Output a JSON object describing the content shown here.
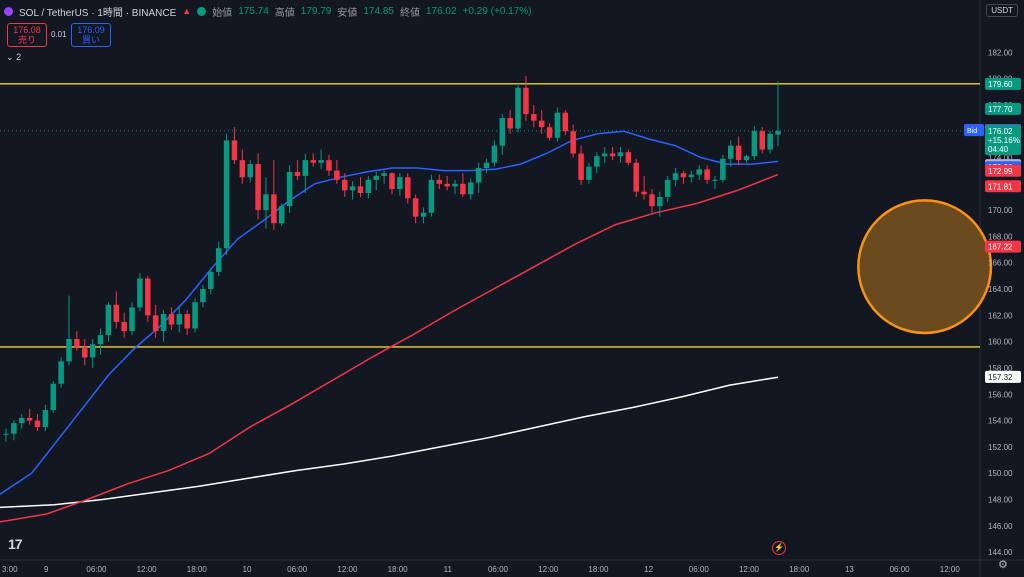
{
  "header": {
    "symbol": "SOL / TetherUS · 1時間 · BINANCE",
    "open_label": "始値",
    "open": "175.74",
    "high_label": "高値",
    "high": "179.79",
    "low_label": "安値",
    "low": "174.85",
    "close_label": "終値",
    "close": "176.02",
    "change": "+0.29 (+0.17%)"
  },
  "quote": {
    "sell_price": "176.08",
    "sell_label": "売り",
    "spread": "0.01",
    "buy_price": "176.09",
    "buy_label": "買い"
  },
  "collapse_count": "2",
  "currency": "USDT",
  "chart_data": {
    "type": "candlestick",
    "title": "",
    "xlabel": "",
    "ylabel": "",
    "ylim": [
      143.4,
      184.3
    ],
    "x_ticks": [
      "3:00",
      "9",
      "06:00",
      "12:00",
      "18:00",
      "10",
      "06:00",
      "12:00",
      "18:00",
      "11",
      "06:00",
      "12:00",
      "18:00",
      "12",
      "06:00",
      "12:00",
      "18:00",
      "13",
      "06:00",
      "12:00"
    ],
    "y_ticks": [
      182,
      180,
      178,
      176,
      174,
      172,
      170,
      168,
      166,
      164,
      162,
      160,
      158,
      156,
      154,
      152,
      150,
      148,
      146,
      144
    ],
    "candles_ohlc": [
      [
        153.0,
        153.4,
        152.4,
        153.0
      ],
      [
        153.0,
        154.0,
        152.5,
        153.8
      ],
      [
        153.8,
        154.5,
        153.4,
        154.2
      ],
      [
        154.2,
        154.9,
        153.7,
        154.0
      ],
      [
        154.0,
        154.5,
        153.2,
        153.5
      ],
      [
        153.5,
        155.2,
        153.2,
        154.8
      ],
      [
        154.8,
        157.0,
        154.6,
        156.8
      ],
      [
        156.8,
        158.8,
        156.5,
        158.5
      ],
      [
        158.5,
        163.5,
        158.2,
        160.2
      ],
      [
        160.2,
        160.8,
        159.3,
        159.6
      ],
      [
        159.6,
        160.2,
        158.2,
        158.8
      ],
      [
        158.8,
        160.2,
        158.0,
        159.8
      ],
      [
        159.8,
        161.0,
        159.0,
        160.5
      ],
      [
        160.5,
        163.0,
        160.0,
        162.8
      ],
      [
        162.8,
        163.8,
        161.0,
        161.5
      ],
      [
        161.5,
        162.2,
        160.3,
        160.8
      ],
      [
        160.8,
        163.0,
        160.5,
        162.6
      ],
      [
        162.6,
        165.2,
        162.3,
        164.8
      ],
      [
        164.8,
        165.0,
        161.5,
        162.0
      ],
      [
        162.0,
        162.8,
        160.3,
        160.8
      ],
      [
        160.8,
        162.4,
        160.0,
        162.1
      ],
      [
        162.1,
        162.6,
        160.9,
        161.3
      ],
      [
        161.3,
        162.6,
        160.7,
        162.1
      ],
      [
        162.1,
        162.4,
        160.5,
        161.0
      ],
      [
        161.0,
        163.3,
        160.7,
        163.0
      ],
      [
        163.0,
        164.3,
        162.6,
        164.0
      ],
      [
        164.0,
        165.6,
        163.6,
        165.3
      ],
      [
        165.3,
        167.6,
        165.0,
        167.1
      ],
      [
        167.1,
        175.8,
        166.6,
        175.3
      ],
      [
        175.3,
        176.3,
        173.5,
        173.8
      ],
      [
        173.8,
        174.6,
        172.0,
        172.5
      ],
      [
        172.5,
        173.8,
        172.1,
        173.5
      ],
      [
        173.5,
        174.3,
        169.3,
        170.0
      ],
      [
        170.0,
        172.5,
        168.6,
        171.2
      ],
      [
        171.2,
        173.8,
        168.5,
        169.0
      ],
      [
        169.0,
        170.5,
        168.8,
        170.3
      ],
      [
        170.3,
        173.4,
        169.8,
        172.9
      ],
      [
        172.9,
        173.8,
        172.3,
        172.6
      ],
      [
        172.6,
        174.3,
        171.3,
        173.8
      ],
      [
        173.8,
        174.3,
        173.3,
        173.6
      ],
      [
        173.6,
        174.6,
        173.1,
        173.8
      ],
      [
        173.8,
        174.2,
        172.6,
        173.0
      ],
      [
        173.0,
        173.8,
        172.0,
        172.3
      ],
      [
        172.3,
        172.8,
        171.0,
        171.5
      ],
      [
        171.5,
        172.2,
        170.8,
        171.8
      ],
      [
        171.8,
        172.5,
        171.0,
        171.3
      ],
      [
        171.3,
        172.6,
        170.9,
        172.3
      ],
      [
        172.3,
        172.9,
        171.5,
        172.6
      ],
      [
        172.6,
        173.0,
        172.0,
        172.8
      ],
      [
        172.8,
        172.9,
        171.2,
        171.6
      ],
      [
        171.6,
        172.8,
        171.1,
        172.5
      ],
      [
        172.5,
        172.8,
        170.5,
        170.9
      ],
      [
        170.9,
        171.2,
        169.0,
        169.5
      ],
      [
        169.5,
        170.2,
        169.0,
        169.8
      ],
      [
        169.8,
        172.7,
        169.5,
        172.3
      ],
      [
        172.3,
        172.7,
        171.6,
        172.0
      ],
      [
        172.0,
        172.6,
        171.5,
        171.8
      ],
      [
        171.8,
        172.3,
        171.2,
        172.0
      ],
      [
        172.0,
        172.8,
        171.0,
        171.2
      ],
      [
        171.2,
        172.4,
        170.8,
        172.1
      ],
      [
        172.1,
        173.6,
        171.3,
        173.2
      ],
      [
        173.2,
        173.9,
        172.8,
        173.6
      ],
      [
        173.6,
        175.3,
        173.3,
        174.9
      ],
      [
        174.9,
        177.3,
        174.2,
        177.0
      ],
      [
        177.0,
        177.6,
        175.8,
        176.2
      ],
      [
        176.2,
        179.6,
        175.9,
        179.3
      ],
      [
        179.3,
        180.2,
        176.8,
        177.3
      ],
      [
        177.3,
        178.0,
        176.3,
        176.8
      ],
      [
        176.8,
        177.6,
        175.8,
        176.3
      ],
      [
        176.3,
        176.6,
        175.3,
        175.5
      ],
      [
        175.5,
        177.8,
        175.2,
        177.4
      ],
      [
        177.4,
        177.6,
        175.7,
        176.0
      ],
      [
        176.0,
        176.5,
        174.0,
        174.3
      ],
      [
        174.3,
        174.9,
        171.9,
        172.3
      ],
      [
        172.3,
        173.6,
        172.0,
        173.3
      ],
      [
        173.3,
        174.4,
        172.8,
        174.1
      ],
      [
        174.1,
        174.8,
        173.6,
        174.3
      ],
      [
        174.3,
        174.8,
        173.8,
        174.1
      ],
      [
        174.1,
        174.8,
        173.6,
        174.4
      ],
      [
        174.4,
        174.6,
        173.4,
        173.6
      ],
      [
        173.6,
        173.9,
        171.0,
        171.4
      ],
      [
        171.4,
        172.6,
        170.8,
        171.2
      ],
      [
        171.2,
        171.6,
        169.8,
        170.3
      ],
      [
        170.3,
        171.4,
        169.5,
        171.0
      ],
      [
        171.0,
        172.6,
        170.6,
        172.3
      ],
      [
        172.3,
        173.2,
        171.8,
        172.8
      ],
      [
        172.8,
        173.0,
        172.0,
        172.5
      ],
      [
        172.5,
        173.0,
        172.1,
        172.7
      ],
      [
        172.7,
        173.4,
        172.3,
        173.1
      ],
      [
        173.1,
        173.4,
        172.0,
        172.3
      ],
      [
        172.3,
        172.6,
        171.6,
        172.3
      ],
      [
        172.3,
        174.2,
        172.1,
        173.9
      ],
      [
        173.9,
        175.3,
        173.3,
        174.9
      ],
      [
        174.9,
        175.6,
        173.4,
        173.8
      ],
      [
        173.8,
        174.2,
        173.6,
        174.1
      ],
      [
        174.1,
        176.4,
        173.8,
        176.0
      ],
      [
        176.0,
        176.3,
        174.3,
        174.6
      ],
      [
        174.6,
        176.0,
        174.3,
        175.8
      ],
      [
        175.74,
        179.79,
        174.85,
        176.02
      ]
    ],
    "ma_blue": {
      "x_from": 0,
      "values": [
        148.4,
        150.0,
        152.5,
        155.0,
        157.5,
        159.5,
        161.2,
        163.2,
        165.6,
        167.8,
        169.2,
        170.7,
        172.0,
        172.5,
        172.9,
        173.2,
        173.2,
        173.0,
        173.0,
        173.1,
        173.5,
        174.3,
        175.3,
        175.8,
        176.0,
        175.4,
        174.9,
        174.0,
        173.5,
        173.5,
        173.7
      ]
    },
    "ma_red": {
      "x_from": 0,
      "values": [
        146.3,
        146.9,
        148.0,
        149.2,
        150.2,
        151.5,
        153.5,
        155.2,
        157.0,
        158.8,
        160.5,
        162.3,
        164.0,
        165.7,
        167.4,
        168.9,
        169.8,
        170.5,
        171.5,
        172.7
      ]
    },
    "ma_white": {
      "x_from": 0,
      "values": [
        147.4,
        147.6,
        148.0,
        148.5,
        149.0,
        149.6,
        150.2,
        150.7,
        151.3,
        152.0,
        152.7,
        153.5,
        154.3,
        155.0,
        155.8,
        156.7,
        157.3
      ]
    },
    "hlines": [
      {
        "price": 179.6,
        "color": "#f2d230"
      },
      {
        "price": 159.6,
        "color": "#f2d230"
      },
      {
        "price": 176.02,
        "color": "#089981",
        "dotted": true
      }
    ],
    "price_labels": [
      {
        "price": 179.6,
        "text": "179.60",
        "bg": "#089981"
      },
      {
        "price": 177.7,
        "text": "177.70",
        "bg": "#089981"
      },
      {
        "price": 176.09,
        "text": "176.09",
        "bg": "#f23645",
        "tag": "Ask",
        "tag_bg": "#f23645"
      },
      {
        "price": 176.08,
        "text": "176.08",
        "bg": "#2962ff",
        "tag": "Bid",
        "tag_bg": "#2962ff"
      },
      {
        "price": 174.67,
        "text": "174.67",
        "bg": "#d1d4dc",
        "fg": "#131722"
      },
      {
        "price": 173.42,
        "text": "173.42",
        "bg": "#b2b5be",
        "fg": "#131722"
      },
      {
        "price": 173.26,
        "text": "173.26",
        "bg": "#2962ff"
      },
      {
        "price": 172.99,
        "text": "172.99",
        "bg": "#f23645"
      },
      {
        "price": 171.81,
        "text": "171.81",
        "bg": "#f23645"
      },
      {
        "price": 167.22,
        "text": "167.22",
        "bg": "#f23645"
      },
      {
        "price": 157.32,
        "text": "157.32",
        "bg": "#ffffff",
        "fg": "#131722"
      }
    ],
    "last_price": {
      "price": 176.02,
      "text": "176.02",
      "change": "+15.16%",
      "countdown": "04:40",
      "bg": "#089981"
    },
    "marker": {
      "x": 109,
      "price": 165.7,
      "r_price": 3.9,
      "fill": "#6b4a1e",
      "stroke": "#f7931a"
    },
    "colors": {
      "up": "#089981",
      "down": "#f23645",
      "ma_blue": "#2962ff",
      "ma_red": "#f23645",
      "ma_white": "#ffffff",
      "grid": "#1e222d"
    },
    "grid": false
  }
}
